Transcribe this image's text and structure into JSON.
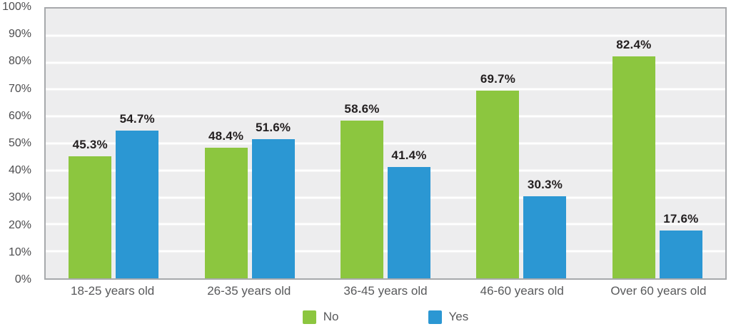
{
  "chart_data": {
    "type": "bar",
    "title": "",
    "categories": [
      "18-25 years old",
      "26-35 years old",
      "36-45 years old",
      "46-60 years old",
      "Over 60 years old"
    ],
    "series": [
      {
        "name": "No",
        "color": "#8cc63f",
        "values": [
          45.3,
          48.4,
          58.6,
          69.7,
          82.4
        ]
      },
      {
        "name": "Yes",
        "color": "#2b97d3",
        "values": [
          54.7,
          51.6,
          41.4,
          30.3,
          17.6
        ]
      }
    ],
    "value_suffix": "%",
    "ylim": [
      0,
      100
    ],
    "ytick_step": 10,
    "yticks": [
      "0%",
      "10%",
      "20%",
      "30%",
      "40%",
      "50%",
      "60%",
      "70%",
      "80%",
      "90%",
      "100%"
    ],
    "grid": true,
    "legend_position": "bottom"
  },
  "colors": {
    "plot_bg": "#ededee",
    "gridline": "#ffffff",
    "plot_border": "#a7a9ac",
    "value_label_text": "#231f20",
    "ytick_text": "#4d4d4f",
    "xtick_text": "#58595b",
    "legend_text": "#58595b"
  }
}
